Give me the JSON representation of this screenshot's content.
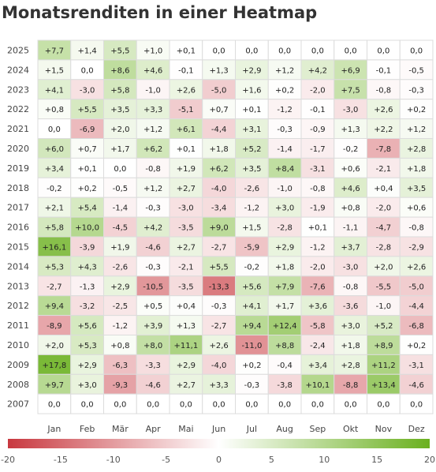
{
  "chart_data": {
    "type": "heatmap",
    "title": "Monatsrenditen in einer Heatmap",
    "x_categories": [
      "Jan",
      "Feb",
      "Mär",
      "Apr",
      "Mai",
      "Jun",
      "Jul",
      "Aug",
      "Sep",
      "Okt",
      "Nov",
      "Dez"
    ],
    "y_categories": [
      "2025",
      "2024",
      "2023",
      "2022",
      "2021",
      "2020",
      "2019",
      "2018",
      "2017",
      "2016",
      "2015",
      "2014",
      "2013",
      "2012",
      "2011",
      "2010",
      "2009",
      "2008",
      "2007"
    ],
    "values": [
      [
        7.7,
        1.4,
        5.5,
        1.0,
        0.1,
        0.0,
        0.0,
        0.0,
        0.0,
        0.0,
        0.0,
        0.0
      ],
      [
        1.5,
        0.0,
        8.6,
        4.6,
        -0.1,
        1.3,
        2.9,
        1.2,
        4.2,
        6.9,
        -0.1,
        -0.5
      ],
      [
        4.1,
        -3.0,
        5.8,
        -1.0,
        2.6,
        -5.0,
        1.6,
        0.2,
        -2.0,
        7.5,
        -0.8,
        -0.3
      ],
      [
        0.8,
        5.5,
        3.5,
        3.3,
        -5.1,
        0.7,
        0.1,
        -1.2,
        -0.1,
        -3.0,
        2.6,
        0.2
      ],
      [
        0.0,
        -6.9,
        2.0,
        1.2,
        6.1,
        -4.4,
        3.1,
        -0.3,
        -0.9,
        1.3,
        2.2,
        1.2
      ],
      [
        6.0,
        0.7,
        1.7,
        6.2,
        0.1,
        1.8,
        5.2,
        -1.4,
        -1.7,
        -0.2,
        -7.8,
        2.8
      ],
      [
        3.4,
        0.1,
        0.0,
        -0.8,
        1.9,
        6.2,
        3.5,
        8.4,
        -3.1,
        0.6,
        -2.1,
        1.8
      ],
      [
        -0.2,
        0.2,
        -0.5,
        1.2,
        2.7,
        -4.0,
        -2.6,
        -1.0,
        -0.8,
        4.6,
        0.4,
        3.5
      ],
      [
        2.1,
        5.4,
        -1.4,
        -0.3,
        -3.0,
        -3.4,
        -1.2,
        3.0,
        -1.9,
        0.8,
        -2.0,
        0.6
      ],
      [
        5.8,
        10.0,
        -4.5,
        4.2,
        -3.5,
        9.0,
        1.5,
        -2.8,
        0.1,
        -1.1,
        -4.7,
        -0.8
      ],
      [
        16.1,
        -3.9,
        1.9,
        -4.6,
        2.7,
        -2.7,
        -5.9,
        2.9,
        -1.2,
        3.7,
        -2.8,
        -2.9
      ],
      [
        5.3,
        4.3,
        -2.6,
        -0.3,
        -2.1,
        5.5,
        -0.2,
        1.8,
        -2.0,
        -3.0,
        2.0,
        2.6
      ],
      [
        -2.7,
        -1.3,
        2.9,
        -10.5,
        -3.5,
        -13.3,
        5.6,
        7.9,
        -7.6,
        -0.8,
        -5.5,
        -5.0
      ],
      [
        9.4,
        -3.2,
        -2.5,
        0.5,
        0.4,
        -0.3,
        4.1,
        1.7,
        3.6,
        -3.6,
        -1.0,
        -4.4
      ],
      [
        -8.9,
        5.6,
        -1.2,
        3.9,
        1.3,
        -2.7,
        9.4,
        12.4,
        -5.8,
        3.0,
        5.2,
        -6.8
      ],
      [
        2.0,
        5.3,
        0.8,
        8.0,
        11.1,
        2.6,
        -11.0,
        8.8,
        -2.4,
        1.8,
        8.9,
        0.2
      ],
      [
        17.8,
        2.9,
        -6.3,
        -3.3,
        2.9,
        -4.0,
        0.2,
        -0.4,
        3.4,
        2.8,
        11.2,
        -3.1
      ],
      [
        9.7,
        3.0,
        -9.3,
        -4.6,
        2.7,
        3.3,
        -0.3,
        -3.8,
        10.1,
        -8.8,
        13.4,
        -4.6
      ],
      [
        0.0,
        0.0,
        0.0,
        0.0,
        0.0,
        0.0,
        0.0,
        0.0,
        0.0,
        0.0,
        0.0,
        0.0
      ]
    ],
    "zlim": [
      -20,
      20
    ],
    "colorscale": {
      "negative": "#c8383f",
      "zero": "#ffffff",
      "positive": "#6ab01e"
    },
    "colorbar": {
      "orientation": "horizontal",
      "position": "bottom",
      "tick_labels": [
        "-20",
        "-15",
        "-10",
        "-5",
        "0",
        "5",
        "10",
        "15",
        "20"
      ]
    },
    "cell_label_format": "signed, one decimal, comma separator"
  }
}
